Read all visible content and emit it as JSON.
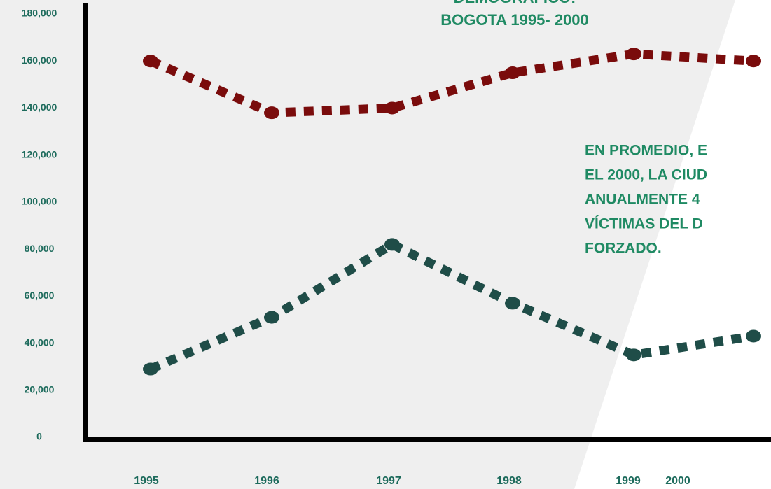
{
  "chart_data": {
    "type": "line",
    "title": [
      "DEMOGRAFICO:",
      "BOGOTA 1995- 2000"
    ],
    "annotation": [
      "EN PROMEDIO, E",
      "EL 2000, LA CIUD",
      "ANUALMENTE 4",
      "VÍCTIMAS DEL D",
      "FORZADO."
    ],
    "categories": [
      "1995",
      "1996",
      "1997",
      "1998",
      "1999",
      "2000"
    ],
    "series": [
      {
        "color": "#7a0c0c",
        "values": [
          160000,
          138000,
          140000,
          155000,
          163000,
          160000
        ]
      },
      {
        "color": "#1f4d48",
        "values": [
          29000,
          51000,
          82000,
          57000,
          35000,
          43000
        ]
      }
    ],
    "ylim": [
      0,
      180000
    ],
    "yticks": [
      0,
      {
        "value": 20000,
        "label": "20,000"
      },
      {
        "value": 40000,
        "label": "40,000"
      },
      {
        "value": 60000,
        "label": "60,000"
      },
      {
        "value": 80000,
        "label": "80,000"
      },
      {
        "value": 100000,
        "label": "100,000"
      },
      {
        "value": 120000,
        "label": "120,000"
      },
      {
        "value": 140000,
        "label": "140,000"
      },
      {
        "value": 160000,
        "label": "160,000"
      },
      {
        "value": 180000,
        "label": "180,000"
      }
    ]
  }
}
